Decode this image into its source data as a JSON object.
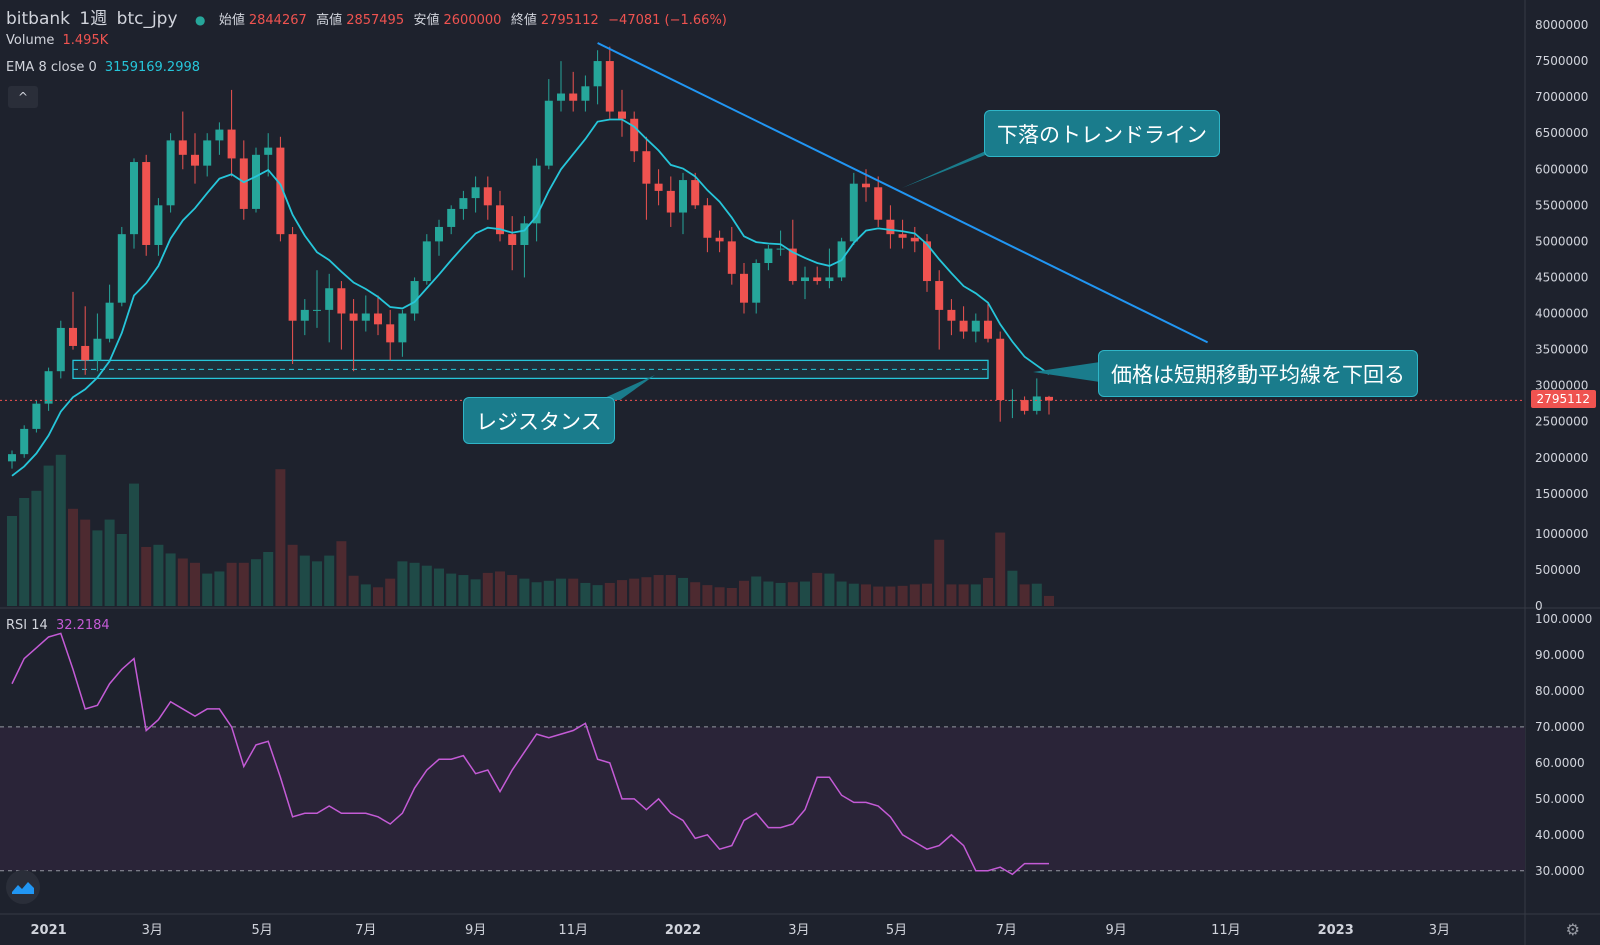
{
  "header": {
    "exchange": "bitbank",
    "interval": "1週",
    "symbol": "btc_jpy",
    "open_label": "始値",
    "open_value": "2844267",
    "high_label": "高値",
    "high_value": "2857495",
    "low_label": "安値",
    "low_value": "2600000",
    "close_label": "終値",
    "close_value": "2795112",
    "change": "−47081 (−1.66%)"
  },
  "indicators": {
    "volume_label": "Volume",
    "volume_value": "1.495K",
    "ema_label": "EMA 8 close 0",
    "ema_value": "3159169.2998",
    "rsi_label": "RSI 14",
    "rsi_value": "32.2184"
  },
  "collapse_icon": "^",
  "last_price_tag": "2795112",
  "annotations": {
    "trendline": "下落のトレンドライン",
    "ema_cross": "価格は短期移動平均線を下回る",
    "resistance": "レジスタンス"
  },
  "colors": {
    "background": "#1e222d",
    "up": "#26a69a",
    "down": "#ef5350",
    "ema": "#26c6da",
    "rsi": "#c45bd6",
    "trendline": "#2196f3",
    "callout": "#1a7c8c"
  },
  "icons": {
    "logo": "tradingview-logo-icon",
    "settings": "gear-icon"
  },
  "chart_data": [
    {
      "type": "candlestick",
      "title": "bitbank 1週 btc_jpy",
      "price_axis_ticks": [
        "8000000",
        "7500000",
        "7000000",
        "6500000",
        "6000000",
        "5500000",
        "5000000",
        "4500000",
        "4000000",
        "3500000",
        "3000000",
        "2500000",
        "2000000",
        "1500000",
        "1000000",
        "500000",
        "0"
      ],
      "time_axis_ticks": [
        "2021",
        "3月",
        "5月",
        "7月",
        "9月",
        "11月",
        "2022",
        "3月",
        "5月",
        "7月",
        "9月",
        "11月",
        "2023",
        "3月"
      ],
      "ylim": [
        0,
        8000000
      ],
      "candles": [
        [
          1950000,
          2100000,
          1850000,
          2050000
        ],
        [
          2050000,
          2450000,
          2000000,
          2400000
        ],
        [
          2400000,
          2800000,
          2350000,
          2750000
        ],
        [
          2750000,
          3250000,
          2650000,
          3200000
        ],
        [
          3200000,
          3900000,
          3100000,
          3800000
        ],
        [
          3800000,
          4300000,
          3500000,
          3550000
        ],
        [
          3550000,
          4100000,
          3150000,
          3350000
        ],
        [
          3350000,
          4000000,
          3200000,
          3650000
        ],
        [
          3650000,
          4400000,
          3600000,
          4150000
        ],
        [
          4150000,
          5200000,
          4100000,
          5100000
        ],
        [
          5100000,
          6150000,
          4900000,
          6100000
        ],
        [
          6100000,
          6200000,
          4800000,
          4950000
        ],
        [
          4950000,
          5600000,
          4800000,
          5500000
        ],
        [
          5500000,
          6500000,
          5400000,
          6400000
        ],
        [
          6400000,
          6800000,
          6000000,
          6200000
        ],
        [
          6200000,
          6500000,
          5800000,
          6050000
        ],
        [
          6050000,
          6500000,
          5900000,
          6400000
        ],
        [
          6400000,
          6650000,
          6200000,
          6550000
        ],
        [
          6550000,
          7100000,
          5900000,
          6150000
        ],
        [
          6150000,
          6400000,
          5300000,
          5450000
        ],
        [
          5450000,
          6300000,
          5400000,
          6200000
        ],
        [
          6200000,
          6500000,
          5900000,
          6300000
        ],
        [
          6300000,
          6450000,
          5000000,
          5100000
        ],
        [
          5100000,
          5200000,
          3300000,
          3900000
        ],
        [
          3900000,
          4200000,
          3700000,
          4050000
        ],
        [
          4050000,
          4600000,
          3800000,
          4050000
        ],
        [
          4050000,
          4550000,
          3600000,
          4350000
        ],
        [
          4350000,
          4450000,
          3500000,
          4000000
        ],
        [
          4000000,
          4200000,
          3200000,
          3900000
        ],
        [
          3900000,
          4250000,
          3750000,
          4000000
        ],
        [
          4000000,
          4250000,
          3700000,
          3850000
        ],
        [
          3850000,
          4050000,
          3350000,
          3600000
        ],
        [
          3600000,
          4050000,
          3400000,
          4000000
        ],
        [
          4000000,
          4500000,
          3900000,
          4450000
        ],
        [
          4450000,
          5100000,
          4400000,
          5000000
        ],
        [
          5000000,
          5300000,
          4800000,
          5200000
        ],
        [
          5200000,
          5500000,
          5100000,
          5450000
        ],
        [
          5450000,
          5700000,
          5300000,
          5600000
        ],
        [
          5600000,
          5900000,
          5400000,
          5750000
        ],
        [
          5750000,
          5900000,
          5300000,
          5500000
        ],
        [
          5500000,
          5700000,
          5000000,
          5100000
        ],
        [
          5100000,
          5350000,
          4600000,
          4950000
        ],
        [
          4950000,
          5350000,
          4500000,
          5250000
        ],
        [
          5250000,
          6150000,
          5000000,
          6050000
        ],
        [
          6050000,
          7250000,
          6000000,
          6950000
        ],
        [
          6950000,
          7500000,
          6800000,
          7050000
        ],
        [
          7050000,
          7350000,
          6800000,
          6950000
        ],
        [
          6950000,
          7300000,
          6800000,
          7150000
        ],
        [
          7150000,
          7650000,
          6900000,
          7500000
        ],
        [
          7500000,
          7700000,
          6700000,
          6800000
        ],
        [
          6800000,
          7100000,
          6450000,
          6700000
        ],
        [
          6700000,
          6800000,
          6100000,
          6250000
        ],
        [
          6250000,
          6450000,
          5300000,
          5800000
        ],
        [
          5800000,
          6000000,
          5500000,
          5700000
        ],
        [
          5700000,
          5900000,
          5200000,
          5400000
        ],
        [
          5400000,
          5950000,
          5100000,
          5850000
        ],
        [
          5850000,
          5950000,
          5450000,
          5500000
        ],
        [
          5500000,
          5600000,
          4850000,
          5050000
        ],
        [
          5050000,
          5150000,
          4850000,
          5000000
        ],
        [
          5000000,
          5200000,
          4400000,
          4550000
        ],
        [
          4550000,
          4700000,
          4000000,
          4150000
        ],
        [
          4150000,
          4750000,
          4000000,
          4700000
        ],
        [
          4700000,
          4950000,
          4600000,
          4900000
        ],
        [
          4900000,
          5150000,
          4800000,
          4900000
        ],
        [
          4900000,
          5300000,
          4400000,
          4450000
        ],
        [
          4450000,
          4650000,
          4200000,
          4500000
        ],
        [
          4500000,
          4650000,
          4400000,
          4450000
        ],
        [
          4450000,
          4900000,
          4350000,
          4500000
        ],
        [
          4500000,
          5050000,
          4450000,
          5000000
        ],
        [
          5000000,
          5950000,
          4950000,
          5800000
        ],
        [
          5800000,
          6000000,
          5550000,
          5750000
        ],
        [
          5750000,
          5900000,
          5200000,
          5300000
        ],
        [
          5300000,
          5500000,
          4900000,
          5100000
        ],
        [
          5100000,
          5300000,
          4900000,
          5050000
        ],
        [
          5050000,
          5200000,
          4850000,
          5000000
        ],
        [
          5000000,
          5100000,
          4300000,
          4450000
        ],
        [
          4450000,
          4600000,
          3500000,
          4050000
        ],
        [
          4050000,
          4200000,
          3700000,
          3900000
        ],
        [
          3900000,
          4100000,
          3650000,
          3750000
        ],
        [
          3750000,
          4000000,
          3600000,
          3900000
        ],
        [
          3900000,
          4150000,
          3600000,
          3650000
        ],
        [
          3650000,
          3750000,
          2500000,
          2800000
        ],
        [
          2800000,
          2950000,
          2550000,
          2800000
        ],
        [
          2800000,
          2850000,
          2600000,
          2650000
        ],
        [
          2650000,
          3100000,
          2600000,
          2850000
        ],
        [
          2844267,
          2857495,
          2600000,
          2795112
        ]
      ],
      "ema8": [
        1750000,
        1880000,
        2060000,
        2310000,
        2640000,
        2840000,
        2950000,
        3110000,
        3340000,
        3730000,
        4250000,
        4420000,
        4660000,
        5040000,
        5290000,
        5460000,
        5670000,
        5870000,
        5930000,
        5820000,
        5900000,
        5990000,
        5790000,
        5370000,
        5080000,
        4850000,
        4740000,
        4580000,
        4430000,
        4340000,
        4230000,
        4090000,
        4070000,
        4160000,
        4350000,
        4540000,
        4740000,
        4930000,
        5110000,
        5190000,
        5170000,
        5120000,
        5150000,
        5350000,
        5700000,
        6000000,
        6210000,
        6420000,
        6660000,
        6690000,
        6690000,
        6590000,
        6420000,
        6260000,
        6060000,
        6010000,
        5900000,
        5710000,
        5550000,
        5330000,
        5070000,
        4990000,
        4970000,
        4960000,
        4850000,
        4770000,
        4700000,
        4660000,
        4740000,
        4980000,
        5150000,
        5180000,
        5160000,
        5140000,
        5110000,
        4960000,
        4750000,
        4560000,
        4380000,
        4280000,
        4150000,
        3850000,
        3610000,
        3400000,
        3280000,
        3159169
      ],
      "volume_axis_ticks": [
        "1000000",
        "500000",
        "0"
      ],
      "volume": [
        1250000,
        1500000,
        1600000,
        1950000,
        2100000,
        1350000,
        1200000,
        1050000,
        1200000,
        1000000,
        1700000,
        820000,
        850000,
        730000,
        660000,
        600000,
        450000,
        480000,
        600000,
        600000,
        650000,
        750000,
        1900000,
        850000,
        700000,
        620000,
        700000,
        900000,
        420000,
        300000,
        260000,
        380000,
        620000,
        600000,
        560000,
        520000,
        450000,
        430000,
        370000,
        460000,
        480000,
        430000,
        380000,
        330000,
        350000,
        380000,
        380000,
        320000,
        290000,
        320000,
        360000,
        380000,
        400000,
        430000,
        430000,
        390000,
        330000,
        290000,
        260000,
        250000,
        350000,
        410000,
        340000,
        320000,
        330000,
        340000,
        460000,
        450000,
        340000,
        310000,
        300000,
        270000,
        270000,
        280000,
        300000,
        310000,
        920000,
        300000,
        300000,
        300000,
        390000,
        1020000,
        490000,
        300000,
        310000,
        140000
      ],
      "rsi_axis_ticks": [
        "100.0000",
        "90.0000",
        "80.0000",
        "70.0000",
        "60.0000",
        "50.0000",
        "40.0000",
        "30.0000"
      ],
      "rsi_levels": [
        70,
        30
      ],
      "rsi_ylim": [
        25,
        100
      ],
      "rsi": [
        82,
        89,
        92,
        95,
        96,
        86,
        75,
        76,
        82,
        86,
        89,
        69,
        72,
        77,
        75,
        73,
        75,
        75,
        70,
        59,
        65,
        66,
        56,
        45,
        46,
        46,
        48,
        46,
        46,
        46,
        45,
        43,
        46,
        53,
        58,
        61,
        61,
        62,
        57,
        58,
        52,
        58,
        63,
        68,
        67,
        68,
        69,
        71,
        61,
        60,
        50,
        50,
        47,
        50,
        46,
        44,
        39,
        40,
        36,
        37,
        44,
        46,
        42,
        42,
        43,
        47,
        56,
        56,
        51,
        49,
        49,
        48,
        45,
        40,
        38,
        36,
        37,
        40,
        37,
        30,
        30,
        31,
        29,
        32,
        32,
        32
      ],
      "resistance_zone": [
        3100000,
        3350000
      ],
      "trendline": [
        [
          48,
          7750000
        ],
        [
          98,
          3600000
        ]
      ]
    }
  ]
}
